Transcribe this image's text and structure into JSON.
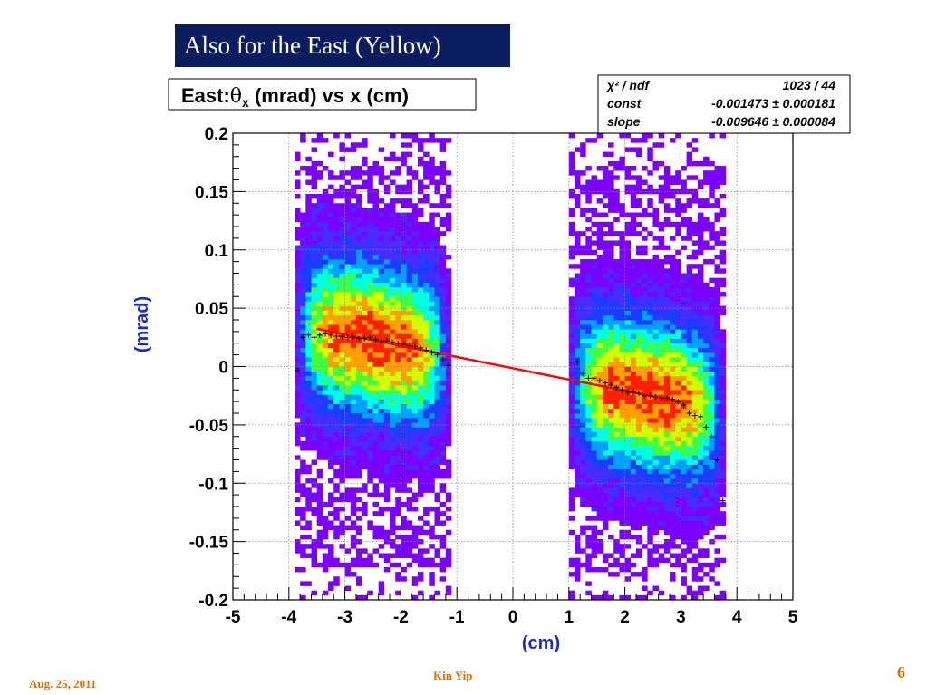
{
  "slide": {
    "title": "Also for the East (Yellow)",
    "date": "Aug. 25, 2011",
    "author": "Kin Yip",
    "page_number": "6"
  },
  "chart_data": {
    "type": "heatmap",
    "title_prefix": "East:",
    "title_symbol": "θ",
    "title_sub": "x",
    "title_suffix": " (mrad) vs x (cm)",
    "xlabel": "(cm)",
    "ylabel": "(mrad)",
    "xlim": [
      -5,
      5
    ],
    "ylim": [
      -0.2,
      0.2
    ],
    "xticks": [
      "-5",
      "-4",
      "-3",
      "-2",
      "-1",
      "0",
      "1",
      "2",
      "3",
      "4",
      "5"
    ],
    "yticks": [
      "0.2",
      "0.15",
      "0.1",
      "0.05",
      "0",
      "-0.05",
      "-0.1",
      "-0.15",
      "-0.2"
    ],
    "grid": true,
    "occupied_x_ranges": [
      [
        -3.9,
        -1.1
      ],
      [
        1.0,
        3.8
      ]
    ],
    "colors": [
      "#7a00ff",
      "#4a2bff",
      "#1a3cff",
      "#00a0ff",
      "#00ffe0",
      "#40ff40",
      "#d0ff00",
      "#ffa000",
      "#ff2000"
    ],
    "fit_line": {
      "x_start": -3.5,
      "x_end": 3.0,
      "const": -0.001473,
      "slope": -0.009646,
      "color": "#ff0000"
    },
    "profile_points": [
      {
        "x": -3.85,
        "y": -0.003
      },
      {
        "x": -3.75,
        "y": 0.025
      },
      {
        "x": -3.65,
        "y": 0.027
      },
      {
        "x": -3.55,
        "y": 0.025
      },
      {
        "x": -3.45,
        "y": 0.027
      },
      {
        "x": -3.35,
        "y": 0.028
      },
      {
        "x": -3.25,
        "y": 0.027
      },
      {
        "x": -3.15,
        "y": 0.026
      },
      {
        "x": -3.05,
        "y": 0.026
      },
      {
        "x": -2.95,
        "y": 0.025
      },
      {
        "x": -2.85,
        "y": 0.025
      },
      {
        "x": -2.75,
        "y": 0.024
      },
      {
        "x": -2.65,
        "y": 0.024
      },
      {
        "x": -2.55,
        "y": 0.025
      },
      {
        "x": -2.45,
        "y": 0.023
      },
      {
        "x": -2.35,
        "y": 0.022
      },
      {
        "x": -2.25,
        "y": 0.022
      },
      {
        "x": -2.15,
        "y": 0.021
      },
      {
        "x": -2.05,
        "y": 0.02
      },
      {
        "x": -1.95,
        "y": 0.019
      },
      {
        "x": -1.85,
        "y": 0.018
      },
      {
        "x": -1.75,
        "y": 0.017
      },
      {
        "x": -1.65,
        "y": 0.016
      },
      {
        "x": -1.55,
        "y": 0.014
      },
      {
        "x": -1.45,
        "y": 0.012
      },
      {
        "x": -1.35,
        "y": 0.01
      },
      {
        "x": -1.25,
        "y": 0.006
      },
      {
        "x": -1.15,
        "y": 0.001
      },
      {
        "x": 1.15,
        "y": 0.004
      },
      {
        "x": 1.25,
        "y": -0.006
      },
      {
        "x": 1.35,
        "y": -0.01
      },
      {
        "x": 1.45,
        "y": -0.01
      },
      {
        "x": 1.55,
        "y": -0.012
      },
      {
        "x": 1.65,
        "y": -0.014
      },
      {
        "x": 1.75,
        "y": -0.016
      },
      {
        "x": 1.85,
        "y": -0.018
      },
      {
        "x": 1.95,
        "y": -0.02
      },
      {
        "x": 2.05,
        "y": -0.022
      },
      {
        "x": 2.15,
        "y": -0.022
      },
      {
        "x": 2.25,
        "y": -0.023
      },
      {
        "x": 2.35,
        "y": -0.025
      },
      {
        "x": 2.45,
        "y": -0.025
      },
      {
        "x": 2.55,
        "y": -0.026
      },
      {
        "x": 2.65,
        "y": -0.027
      },
      {
        "x": 2.75,
        "y": -0.027
      },
      {
        "x": 2.85,
        "y": -0.028
      },
      {
        "x": 2.95,
        "y": -0.03
      },
      {
        "x": 3.05,
        "y": -0.033
      },
      {
        "x": 3.15,
        "y": -0.04
      },
      {
        "x": 3.25,
        "y": -0.042
      },
      {
        "x": 3.35,
        "y": -0.043
      },
      {
        "x": 3.45,
        "y": -0.052
      },
      {
        "x": 3.55,
        "y": -0.06
      },
      {
        "x": 3.65,
        "y": -0.08
      },
      {
        "x": 3.75,
        "y": -0.115
      }
    ],
    "stats_box": {
      "rows": [
        {
          "label": "χ² / ndf",
          "value": "1023 / 44"
        },
        {
          "label": "const",
          "value": "-0.001473 ± 0.000181"
        },
        {
          "label": "slope",
          "value": "-0.009646 ± 0.000084"
        }
      ]
    }
  }
}
